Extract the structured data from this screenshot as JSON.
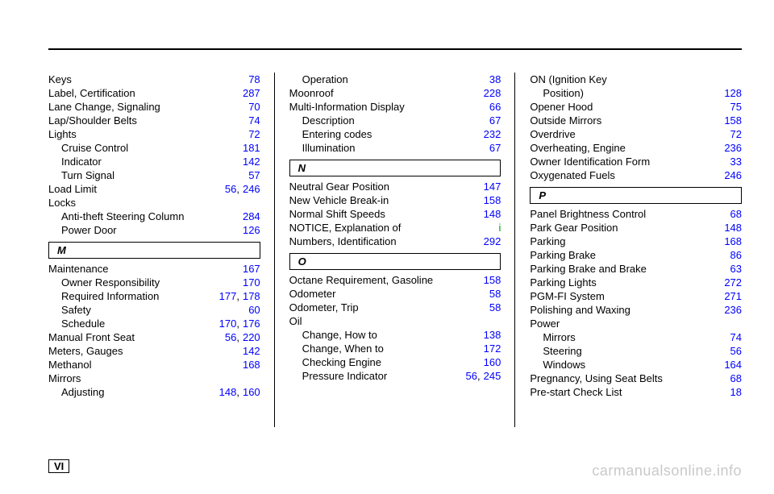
{
  "layout": {
    "page_roman": "VI",
    "watermark": "carmanualsonline.info"
  },
  "col1": {
    "entries": [
      {
        "label": "Keys",
        "pages": [
          "78"
        ]
      },
      {
        "label": "Label, Certification",
        "pages": [
          "287"
        ]
      },
      {
        "label": "Lane Change, Signaling",
        "pages": [
          "70"
        ]
      },
      {
        "label": "Lap/Shoulder Belts",
        "pages": [
          "74"
        ]
      },
      {
        "label": "Lights",
        "pages": [
          "72"
        ]
      },
      {
        "label": "Cruise Control",
        "pages": [
          "181"
        ],
        "indent": true
      },
      {
        "label": "Indicator",
        "pages": [
          "142"
        ],
        "indent": true
      },
      {
        "label": "Turn Signal",
        "pages": [
          "57"
        ],
        "indent": true
      },
      {
        "label": "Load Limit",
        "pages": [
          "56",
          "246"
        ]
      },
      {
        "label": "Locks"
      },
      {
        "label": "Anti-theft Steering Column",
        "pages": [
          "284"
        ],
        "indent": true
      },
      {
        "label": "Power Door",
        "pages": [
          "126"
        ],
        "indent": true
      }
    ],
    "section": "M",
    "after": [
      {
        "label": "Maintenance",
        "pages": [
          "167"
        ]
      },
      {
        "label": "Owner Responsibility",
        "pages": [
          "170"
        ],
        "indent": true
      },
      {
        "label": "Required Information",
        "pages": [
          "177",
          "178"
        ],
        "indent": true
      },
      {
        "label": "Safety",
        "pages": [
          "60"
        ],
        "indent": true
      },
      {
        "label": "Schedule",
        "pages": [
          "170",
          "176"
        ],
        "indent": true
      },
      {
        "label": "Manual Front Seat",
        "pages": [
          "56",
          "220"
        ]
      },
      {
        "label": "Meters, Gauges",
        "pages": [
          "142"
        ]
      },
      {
        "label": "Methanol",
        "pages": [
          "168"
        ]
      },
      {
        "label": "Mirrors"
      },
      {
        "label": "Adjusting",
        "pages": [
          "148",
          "160"
        ],
        "indent": true
      }
    ]
  },
  "col2": {
    "top": [
      {
        "label": "Operation",
        "pages": [
          "38"
        ],
        "indent": true
      },
      {
        "label": "Moonroof",
        "pages": [
          "228"
        ]
      },
      {
        "label": "Multi-Information Display",
        "pages": [
          "66"
        ]
      },
      {
        "label": "Description",
        "pages": [
          "67"
        ],
        "indent": true
      },
      {
        "label": "Entering codes",
        "pages": [
          "232"
        ],
        "indent": true
      },
      {
        "label": "Illumination",
        "pages": [
          "67"
        ],
        "indent": true
      }
    ],
    "section1": "N",
    "mid": [
      {
        "label": "Neutral Gear Position",
        "pages": [
          "147"
        ]
      },
      {
        "label": "New Vehicle Break-in",
        "pages": [
          "158"
        ]
      },
      {
        "label": "Normal Shift Speeds",
        "pages": [
          "148"
        ]
      },
      {
        "label": "NOTICE, Explanation of",
        "pages": [
          "i"
        ],
        "green": true
      },
      {
        "label": "Numbers, Identification",
        "pages": [
          "292"
        ]
      }
    ],
    "section2": "O",
    "bottom": [
      {
        "label": "Octane Requirement, Gasoline",
        "pages": [
          "158"
        ]
      },
      {
        "label": "Odometer",
        "pages": [
          "58"
        ]
      },
      {
        "label": "Odometer, Trip",
        "pages": [
          "58"
        ]
      },
      {
        "label": "Oil"
      },
      {
        "label": "Change, How to",
        "pages": [
          "138"
        ],
        "indent": true
      },
      {
        "label": "Change, When to",
        "pages": [
          "172"
        ],
        "indent": true
      },
      {
        "label": "Checking Engine",
        "pages": [
          "160"
        ],
        "indent": true
      },
      {
        "label": "Pressure Indicator",
        "pages": [
          "56",
          "245"
        ],
        "indent": true
      }
    ]
  },
  "col3": {
    "top": [
      {
        "label": "ON (Ignition Key"
      },
      {
        "label": "Position)",
        "pages": [
          "128"
        ],
        "indent": true
      },
      {
        "label": "Opener Hood",
        "pages": [
          "75"
        ]
      },
      {
        "label": "Outside Mirrors",
        "pages": [
          "158"
        ]
      },
      {
        "label": "Overdrive",
        "pages": [
          "72"
        ]
      },
      {
        "label": "Overheating, Engine",
        "pages": [
          "236"
        ]
      },
      {
        "label": "Owner Identification Form",
        "pages": [
          "33"
        ]
      },
      {
        "label": "Oxygenated Fuels",
        "pages": [
          "246"
        ]
      }
    ],
    "section": "P",
    "bottom": [
      {
        "label": "Panel Brightness Control",
        "pages": [
          "68"
        ]
      },
      {
        "label": "Park Gear Position",
        "pages": [
          "148"
        ]
      },
      {
        "label": "Parking",
        "pages": [
          "168"
        ]
      },
      {
        "label": "Parking Brake",
        "pages": [
          "86"
        ]
      },
      {
        "label": "Parking Brake and Brake",
        "pages": [
          "63"
        ]
      },
      {
        "label": "Parking Lights",
        "pages": [
          "272"
        ]
      },
      {
        "label": "PGM-FI System",
        "pages": [
          "271"
        ]
      },
      {
        "label": "Polishing and Waxing",
        "pages": [
          "236"
        ]
      },
      {
        "label": "Power"
      },
      {
        "label": "Mirrors",
        "pages": [
          "74"
        ],
        "indent": true
      },
      {
        "label": "Steering",
        "pages": [
          "56"
        ],
        "indent": true
      },
      {
        "label": "Windows",
        "pages": [
          "164"
        ],
        "indent": true
      },
      {
        "label": "Pregnancy, Using Seat Belts",
        "pages": [
          "68"
        ]
      },
      {
        "label": "Pre-start Check List",
        "pages": [
          "18"
        ]
      }
    ]
  }
}
